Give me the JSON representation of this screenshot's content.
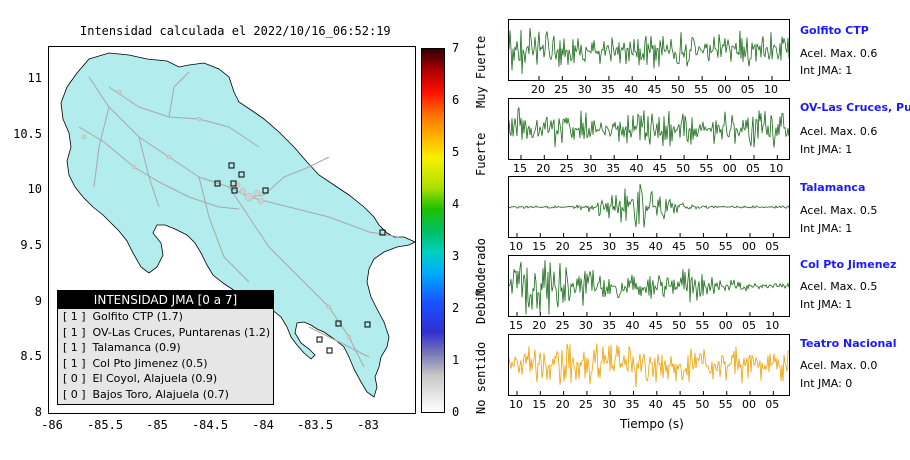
{
  "map": {
    "title": "Intensidad calculada el 2022/10/16_06:52:19",
    "yticks": [
      "11",
      "10.5",
      "10",
      "9.5",
      "9",
      "8.5",
      "8"
    ],
    "xticks": [
      "-86",
      "-85.5",
      "-85",
      "-84.5",
      "-84",
      "-83.5",
      "-83"
    ]
  },
  "legend": {
    "title": "INTENSIDAD JMA [0 a 7]",
    "items": [
      {
        "code": "[ 1 ]",
        "label": "Golfito CTP (1.7)"
      },
      {
        "code": "[ 1 ]",
        "label": "OV-Las Cruces, Puntarenas (1.2)"
      },
      {
        "code": "[ 1 ]",
        "label": "Talamanca (0.9)"
      },
      {
        "code": "[ 1 ]",
        "label": "Col Pto Jimenez (0.5)"
      },
      {
        "code": "[ 0 ]",
        "label": "El Coyol, Alajuela (0.9)"
      },
      {
        "code": "[ 0 ]",
        "label": "Bajos Toro, Alajuela (0.7)"
      }
    ]
  },
  "colorbar": {
    "numbers": [
      "7",
      "6",
      "5",
      "4",
      "3",
      "2",
      "1",
      "0"
    ],
    "categories": [
      "Muy Fuerte",
      "Fuerte",
      "Moderado",
      "Debil",
      "No sentido"
    ]
  },
  "waveforms": [
    {
      "name": "Golfito CTP",
      "acel": "Acel. Max. 0.6",
      "int": "Int JMA: 1",
      "color": "#1a6b1a",
      "ticks": [
        "20",
        "25",
        "30",
        "35",
        "40",
        "45",
        "50",
        "55",
        "00",
        "05",
        "10"
      ]
    },
    {
      "name": "OV-Las Cruces, Puntar",
      "acel": "Acel. Max. 0.6",
      "int": "Int JMA: 1",
      "color": "#1a6b1a",
      "ticks": [
        "15",
        "20",
        "25",
        "30",
        "35",
        "40",
        "45",
        "50",
        "55",
        "00",
        "05",
        "10"
      ]
    },
    {
      "name": "Talamanca",
      "acel": "Acel. Max. 0.5",
      "int": "Int JMA: 1",
      "color": "#1a6b1a",
      "ticks": [
        "10",
        "15",
        "20",
        "25",
        "30",
        "35",
        "40",
        "45",
        "50",
        "55",
        "00",
        "05"
      ]
    },
    {
      "name": "Col Pto Jimenez",
      "acel": "Acel. Max. 0.5",
      "int": "Int JMA: 1",
      "color": "#1a6b1a",
      "ticks": [
        "15",
        "20",
        "25",
        "30",
        "35",
        "40",
        "45",
        "50",
        "55",
        "00",
        "05",
        "10"
      ]
    },
    {
      "name": "Teatro Nacional",
      "acel": "Acel. Max. 0.0",
      "int": "Int JMA: 0",
      "color": "#f0a000",
      "ticks": [
        "10",
        "15",
        "20",
        "25",
        "30",
        "35",
        "40",
        "45",
        "50",
        "55",
        "00",
        "05"
      ]
    }
  ],
  "wave_xlabel": "Tiempo (s)",
  "colors": {
    "land": "#b2ecec",
    "roads": "#a8a8a8",
    "border": "#000000"
  }
}
